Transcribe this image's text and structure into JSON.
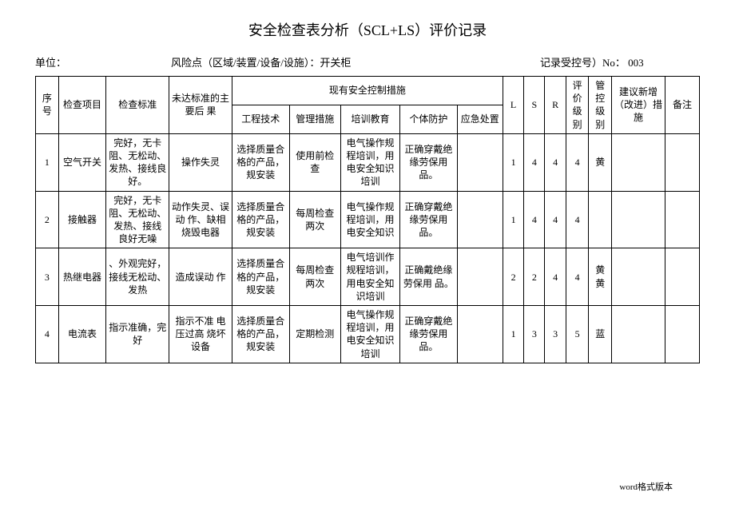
{
  "title": "安全检查表分析（SCL+LS）评价记录",
  "subhead": {
    "unit_label": "单位：",
    "risk_label": "风险点（区域/装置/设备/设施）：开关柜",
    "record_label": "记录受控号）No：  003"
  },
  "head": {
    "seq": "序号",
    "item": "检查项目",
    "std": "检查标准",
    "fail": "未达标准的主要后  果",
    "measures_group": "现有安全控制措施",
    "m1": "工程技术",
    "m2": "管理措施",
    "m3": "培训教育",
    "m4": "个体防护",
    "m5": "应急处置",
    "L": "L",
    "S": "S",
    "R": "R",
    "eval": "评价级别",
    "ctrl": "管控级别",
    "suggest": "建议新增（改进）措施",
    "note": "备注"
  },
  "rows": [
    {
      "seq": "1",
      "item": "空气开关",
      "std": "完好，无卡阻、无松动、发热、接线良好。",
      "fail": "操作失灵",
      "m1": "选择质量合格的产品，规安装",
      "m2": "使用前检查",
      "m3": "电气操作规程培训，用电安全知识培训",
      "m4": "正确穿戴绝缘劳保用品。",
      "m5": "",
      "L": "1",
      "S": "4",
      "R": "4",
      "eval": "4",
      "ctrl": "黄",
      "suggest": "",
      "note": ""
    },
    {
      "seq": "2",
      "item": "接触器",
      "std": "完好，无卡阻、无松动、发热、接线 良好无噪",
      "fail": "动作失灵、误动 作、缺相  烧毁电器",
      "m1": "选择质量合格的产品，规安装",
      "m2": "每周检查两次",
      "m3": "电气操作规程培训，用电安全知识",
      "m4": "正确穿戴绝缘劳保用品。",
      "m5": "",
      "L": "1",
      "S": "4",
      "R": "4",
      "eval": "4",
      "ctrl": "",
      "suggest": "",
      "note": ""
    },
    {
      "seq": "3",
      "item": "热继电器",
      "std": "、外观完好，接线无松动、发热",
      "fail": "造成误动  作",
      "m1": "选择质量合格的产品，规安装",
      "m2": "每周检查两次",
      "m3": "电气培训作规程培训，用电安全知识培训",
      "m4": "正确戴绝缘劳保用  品。",
      "m5": "",
      "L": "2",
      "S": "2",
      "R": "4",
      "eval": "4",
      "ctrl": "黄黄",
      "suggest": "",
      "note": ""
    },
    {
      "seq": "4",
      "item": "电流表",
      "std": "指示准确，完好",
      "fail": "指示不准  电压过高 烧坏设备",
      "m1": "选择质量合格的产品，规安装",
      "m2": "定期检测",
      "m3": "电气操作规程培训，用电安全知识培训",
      "m4": "正确穿戴绝缘劳保用  品。",
      "m5": "",
      "L": "1",
      "S": "3",
      "R": "3",
      "eval": "5",
      "ctrl": "蓝",
      "suggest": "",
      "note": ""
    }
  ],
  "footer": "word格式版本"
}
